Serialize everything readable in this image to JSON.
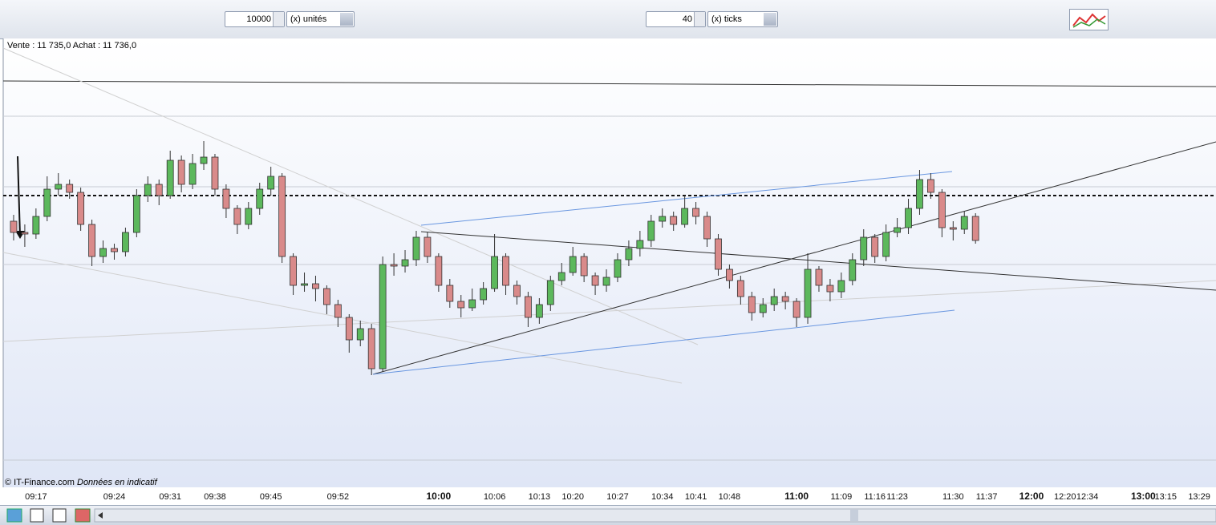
{
  "toolbar": {
    "quantity": "10000",
    "quantity_unit": "(x) unités",
    "ticks": "40",
    "ticks_unit": "(x) ticks"
  },
  "quote": "Vente : 11 735,0 Achat : 11 736,0",
  "footer": {
    "copyright": "© IT-Finance.com",
    "note": "Données en indicatif"
  },
  "chart_data": {
    "type": "candlestick",
    "up_color": "#5cb85c",
    "down_color": "#d98a8a",
    "ylim": [
      11658,
      11798
    ],
    "categories": [
      null,
      null,
      "09:17",
      null,
      null,
      null,
      null,
      null,
      null,
      "09:24",
      null,
      null,
      null,
      null,
      "09:31",
      null,
      null,
      null,
      "09:38",
      null,
      null,
      null,
      null,
      "09:45",
      null,
      null,
      null,
      null,
      null,
      "09:52",
      null,
      null,
      null,
      null,
      null,
      null,
      null,
      null,
      "10:00",
      null,
      null,
      null,
      null,
      "10:06",
      null,
      null,
      null,
      "10:13",
      null,
      null,
      "10:20",
      null,
      null,
      null,
      "10:27",
      null,
      null,
      null,
      "10:34",
      null,
      null,
      "10:41",
      null,
      null,
      "10:48",
      null,
      null,
      null,
      null,
      null,
      "11:00",
      null,
      null,
      null,
      "11:09",
      null,
      null,
      "11:16",
      null,
      "11:23",
      null,
      null,
      null,
      null,
      "11:30",
      null,
      null,
      "11:37",
      null,
      null,
      null,
      "12:00",
      null,
      null,
      "12:20",
      null,
      "12:34",
      null,
      null,
      null,
      null,
      "13:00",
      null,
      "13:15",
      null,
      null,
      "13:29",
      null
    ],
    "open": [
      11741,
      11737.5,
      11737,
      11742.5,
      11751,
      11752.5,
      11750,
      11740,
      11730,
      11732.5,
      11731.5,
      11737.5,
      11749,
      11752.5,
      11749,
      11760,
      11752.5,
      11759,
      11761,
      11751,
      11745,
      11740,
      11745,
      11751,
      11755,
      11730,
      11721,
      11721.5,
      11720,
      11715,
      11711,
      11704,
      11707.5,
      11695,
      11727.5,
      11727,
      11729,
      11736,
      11730,
      11721,
      11716,
      11714,
      11716.5,
      11720,
      11730,
      11721,
      11717.5,
      11711,
      11715,
      11722.5,
      11725,
      11730,
      11724,
      11721,
      11723.5,
      11729,
      11732.5,
      11735,
      11741,
      11742.5,
      11740,
      11745,
      11742.5,
      11735.5,
      11726,
      11722.5,
      11717.5,
      11712.5,
      11715,
      11717.5,
      11716,
      11711,
      11726,
      11721,
      11719,
      11722.5,
      11729,
      11736,
      11730,
      11737.5,
      11739,
      11745,
      11754,
      11750,
      11739,
      11738.5,
      11742.5,
      null,
      null,
      null,
      null,
      null,
      null,
      null,
      null,
      null,
      null,
      null,
      null,
      null,
      null,
      null,
      null,
      null,
      null,
      null,
      null,
      null
    ],
    "high": [
      11743,
      11740,
      11745,
      11755,
      11756,
      11754,
      11751.5,
      11741.5,
      11735,
      11734,
      11739,
      11751,
      11755,
      11754,
      11763,
      11761.5,
      11762,
      11766,
      11762,
      11752.5,
      11746,
      11747,
      11753,
      11758,
      11756,
      11731,
      11725,
      11724,
      11721,
      11716.5,
      11712,
      11710,
      11709,
      11730,
      11731,
      11732,
      11738,
      11737.5,
      11731,
      11723,
      11718,
      11720,
      11722,
      11737,
      11731,
      11722.5,
      11719,
      11717,
      11724,
      11728,
      11733,
      11731,
      11725,
      11726,
      11731,
      11735,
      11738,
      11743,
      11745,
      11744,
      11749,
      11747,
      11744,
      11737,
      11727.5,
      11724,
      11719,
      11717,
      11720,
      11719,
      11717,
      11731,
      11727,
      11723,
      11725,
      11731,
      11738.5,
      11737,
      11740,
      11742,
      11748,
      11757,
      11756,
      11751,
      11741,
      11744,
      11743.5,
      null,
      null,
      null,
      null,
      null,
      null,
      null,
      null,
      null,
      null,
      null,
      null,
      null,
      null,
      null,
      null,
      null,
      null,
      null,
      null,
      null
    ],
    "low": [
      11735,
      11733,
      11735.5,
      11741,
      11749,
      11748,
      11738,
      11727,
      11728,
      11729,
      11730,
      11736,
      11747,
      11746,
      11748,
      11750,
      11751,
      11757,
      11749,
      11742,
      11737,
      11738.5,
      11743,
      11749,
      11728,
      11718,
      11719,
      11716,
      11712,
      11708,
      11700,
      11702,
      11693,
      11694,
      11724,
      11725,
      11727,
      11728,
      11719,
      11714,
      11711,
      11713,
      11715,
      11719,
      11718,
      11715,
      11708,
      11709,
      11713,
      11721,
      11724,
      11722,
      11718,
      11719,
      11722,
      11727,
      11730,
      11733,
      11739,
      11738,
      11739,
      11740,
      11733,
      11724,
      11720,
      11715,
      11710,
      11711,
      11713,
      11713.5,
      11708,
      11709,
      11719,
      11716,
      11717,
      11721,
      11727,
      11728,
      11728.5,
      11736,
      11737,
      11743,
      11748,
      11736,
      11735,
      11737,
      11734,
      null,
      null,
      null,
      null,
      null,
      null,
      null,
      null,
      null,
      null,
      null,
      null,
      null,
      null,
      null,
      null,
      null,
      null,
      null,
      null,
      null
    ],
    "close": [
      11737.5,
      11737,
      11742.5,
      11751,
      11752.5,
      11750,
      11740,
      11730,
      11732.5,
      11731.5,
      11737.5,
      11749,
      11752.5,
      11749,
      11760,
      11752.5,
      11759,
      11761,
      11751,
      11745,
      11740,
      11745,
      11751,
      11755,
      11730,
      11721,
      11721.5,
      11720,
      11715,
      11711,
      11704,
      11707.5,
      11695,
      11727.5,
      11727,
      11729,
      11736,
      11730,
      11721,
      11716,
      11714,
      11716.5,
      11720,
      11730,
      11721,
      11717.5,
      11711,
      11715,
      11722.5,
      11725,
      11730,
      11724,
      11721,
      11723.5,
      11729,
      11732.5,
      11735,
      11741,
      11742.5,
      11740,
      11745,
      11742.5,
      11735.5,
      11726,
      11722.5,
      11717.5,
      11712.5,
      11715,
      11717.5,
      11716,
      11711,
      11726,
      11721,
      11719,
      11722.5,
      11729,
      11736,
      11730,
      11737.5,
      11739,
      11745,
      11754,
      11750,
      11739,
      11738.5,
      11742.5,
      11735,
      null,
      null,
      null,
      null,
      null,
      null,
      null,
      null,
      null,
      null,
      null,
      null,
      null,
      null,
      null,
      null,
      null,
      null,
      null,
      null,
      null
    ]
  }
}
